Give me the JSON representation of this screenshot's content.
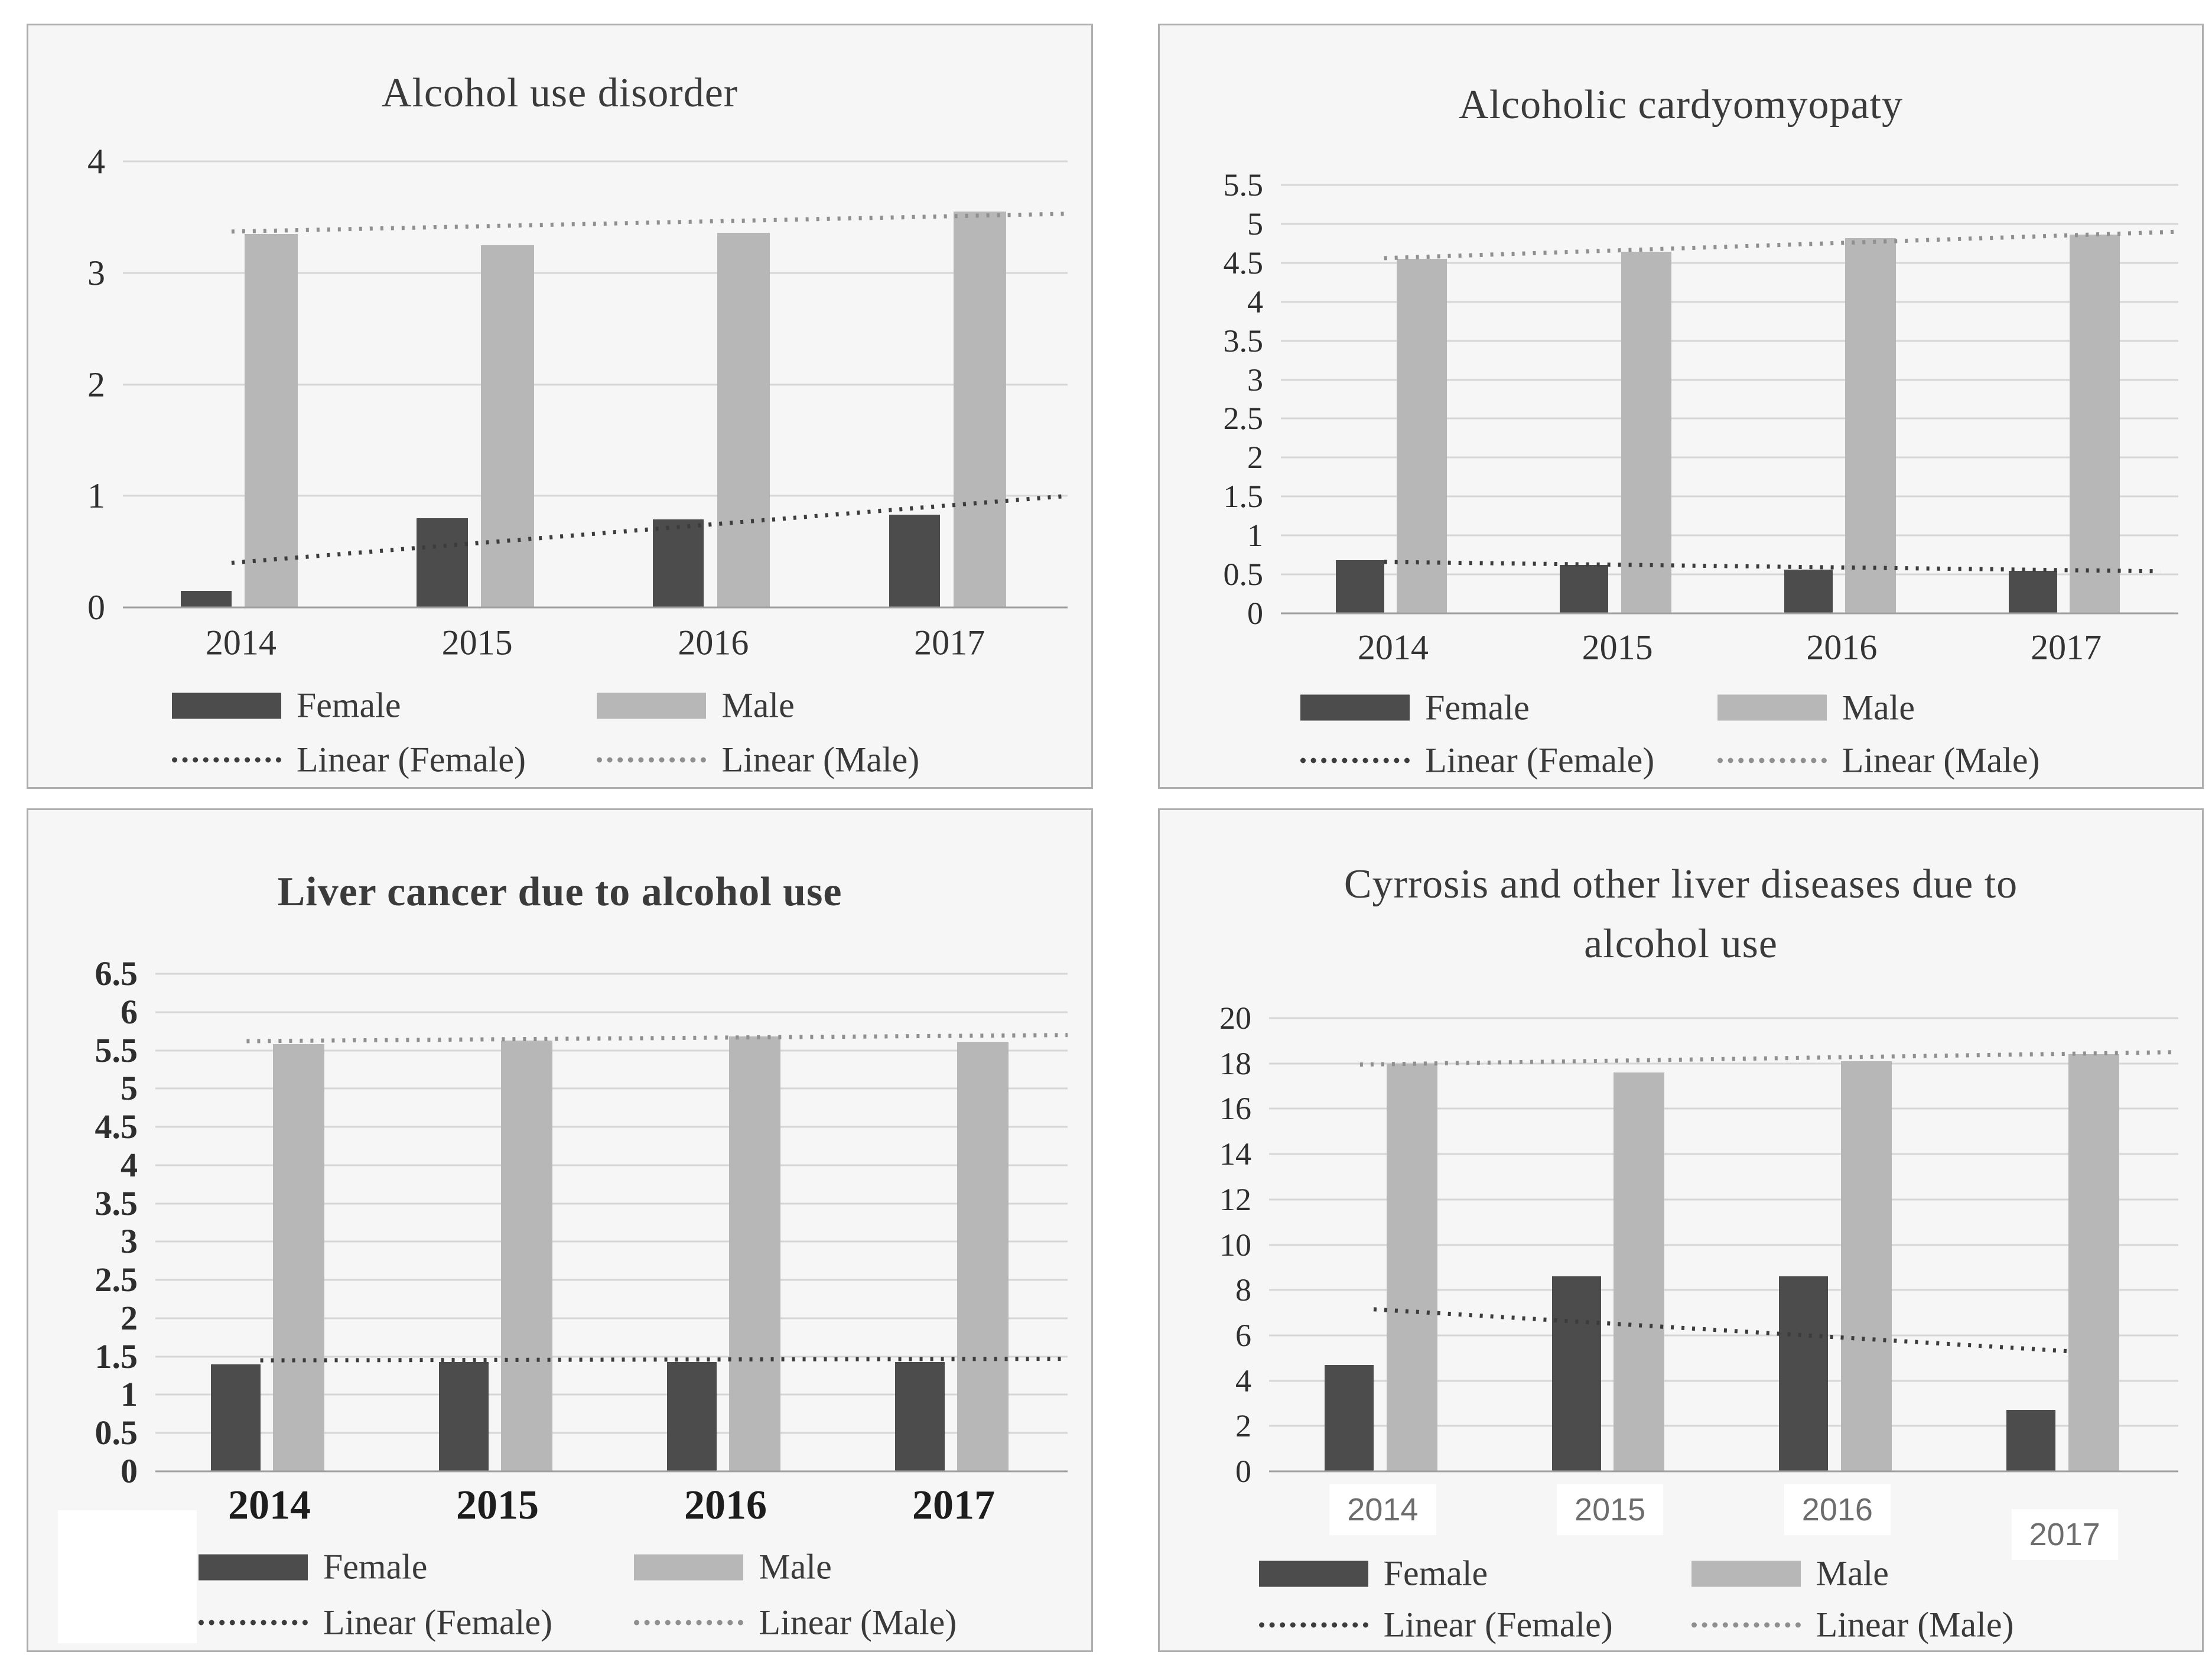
{
  "page": {
    "background": "#ffffff"
  },
  "colors": {
    "female_bar": "#4c4c4c",
    "male_bar": "#b7b7b7",
    "linear_female_line": "#3c3c3c",
    "linear_male_line": "#8f8f8f",
    "gridline": "#d6d6d6",
    "axis_line": "#9f9f9f",
    "panel_border": "#aeaeae",
    "panel_background": "#f6f6f6",
    "text": "#3b3b3b"
  },
  "chart_data": [
    {
      "id": "alcohol-use-disorder",
      "type": "bar",
      "title": "Alcohol use disorder",
      "title_lines": [
        "Alcohol use disorder"
      ],
      "categories": [
        "2014",
        "2015",
        "2016",
        "2017"
      ],
      "series": [
        {
          "name": "Female",
          "values": [
            0.15,
            0.8,
            0.79,
            0.83
          ]
        },
        {
          "name": "Male",
          "values": [
            3.35,
            3.25,
            3.36,
            3.55
          ]
        }
      ],
      "trendlines": [
        {
          "name": "Linear (Female)",
          "points": {
            "x1_pct": 11.5,
            "v1": 0.4,
            "x2_pct": 100,
            "v2": 1.0
          }
        },
        {
          "name": "Linear (Male)",
          "points": {
            "x1_pct": 11.5,
            "v1": 3.37,
            "x2_pct": 100,
            "v2": 3.53
          }
        }
      ],
      "y_ticks": [
        "0",
        "1",
        "2",
        "3",
        "4"
      ],
      "ylim": [
        0,
        4
      ],
      "y_step": 1,
      "grid": true,
      "legend_position": "bottom",
      "legend": [
        "Female",
        "Male",
        "Linear (Female)",
        "Linear (Male)"
      ]
    },
    {
      "id": "alcoholic-cardyomyopaty",
      "type": "bar",
      "title": "Alcoholic cardyomyopaty",
      "title_lines": [
        "Alcoholic cardyomyopaty"
      ],
      "categories": [
        "2014",
        "2015",
        "2016",
        "2017"
      ],
      "series": [
        {
          "name": "Female",
          "values": [
            0.68,
            0.62,
            0.56,
            0.55
          ]
        },
        {
          "name": "Male",
          "values": [
            4.55,
            4.64,
            4.82,
            4.86
          ]
        }
      ],
      "trendlines": [
        {
          "name": "Linear (Female)",
          "points": {
            "x1_pct": 11.5,
            "v1": 0.66,
            "x2_pct": 98,
            "v2": 0.54
          }
        },
        {
          "name": "Linear (Male)",
          "points": {
            "x1_pct": 11.5,
            "v1": 4.56,
            "x2_pct": 100,
            "v2": 4.9
          }
        }
      ],
      "y_ticks": [
        "0",
        "0.5",
        "1",
        "1.5",
        "2",
        "2.5",
        "3",
        "3.5",
        "4",
        "4.5",
        "5",
        "5.5"
      ],
      "ylim": [
        0,
        5.5
      ],
      "y_step": 0.5,
      "grid": true,
      "legend_position": "bottom",
      "legend": [
        "Female",
        "Male",
        "Linear (Female)",
        "Linear (Male)"
      ]
    },
    {
      "id": "liver-cancer-due-to-alcohol-use",
      "type": "bar",
      "title": "Liver cancer due to alcohol use",
      "title_lines": [
        "Liver cancer due to alcohol use"
      ],
      "categories": [
        "2014",
        "2015",
        "2016",
        "2017"
      ],
      "series": [
        {
          "name": "Female",
          "values": [
            1.4,
            1.43,
            1.43,
            1.43
          ]
        },
        {
          "name": "Male",
          "values": [
            5.58,
            5.63,
            5.68,
            5.61
          ]
        }
      ],
      "trendlines": [
        {
          "name": "Linear (Female)",
          "points": {
            "x1_pct": 11.5,
            "v1": 1.45,
            "x2_pct": 100,
            "v2": 1.47
          }
        },
        {
          "name": "Linear (Male)",
          "points": {
            "x1_pct": 10,
            "v1": 5.62,
            "x2_pct": 100,
            "v2": 5.7
          }
        }
      ],
      "y_ticks": [
        "0",
        "0.5",
        "1",
        "1.5",
        "2",
        "2.5",
        "3",
        "3.5",
        "4",
        "4.5",
        "5",
        "5.5",
        "6",
        "6.5"
      ],
      "ylim": [
        0,
        6.5
      ],
      "y_step": 0.5,
      "grid": true,
      "legend_position": "bottom",
      "legend": [
        "Female",
        "Male",
        "Linear (Female)",
        "Linear (Male)"
      ]
    },
    {
      "id": "cyrrosis-and-other-liver-diseases",
      "type": "bar",
      "title": "Cyrrosis and other liver diseases due to alcohol use",
      "title_lines": [
        "Cyrrosis and other liver diseases due to",
        "alcohol use"
      ],
      "categories": [
        "2014",
        "2015",
        "2016",
        "2017"
      ],
      "series": [
        {
          "name": "Female",
          "values": [
            4.7,
            8.6,
            8.6,
            2.7
          ]
        },
        {
          "name": "Male",
          "values": [
            18.0,
            17.6,
            18.1,
            18.4
          ]
        }
      ],
      "trendlines": [
        {
          "name": "Linear (Female)",
          "points": {
            "x1_pct": 11.5,
            "v1": 7.15,
            "x2_pct": 88,
            "v2": 5.3
          }
        },
        {
          "name": "Linear (Male)",
          "points": {
            "x1_pct": 10,
            "v1": 17.95,
            "x2_pct": 100,
            "v2": 18.5
          }
        }
      ],
      "y_ticks": [
        "0",
        "2",
        "4",
        "6",
        "8",
        "10",
        "12",
        "14",
        "16",
        "18",
        "20"
      ],
      "ylim": [
        0,
        20
      ],
      "y_step": 2,
      "grid": true,
      "legend_position": "bottom",
      "legend": [
        "Female",
        "Male",
        "Linear (Female)",
        "Linear (Male)"
      ]
    }
  ]
}
